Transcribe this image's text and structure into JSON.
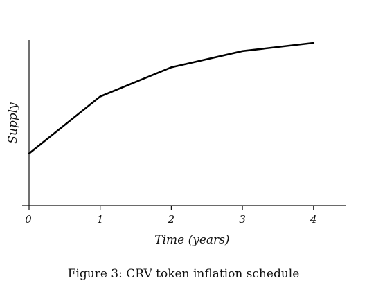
{
  "caption": "Figure 3: CRV token inflation schedule",
  "chart_data": {
    "type": "line",
    "title": "",
    "xlabel": "Time (years)",
    "ylabel": "Supply",
    "xticks": [
      "0",
      "1",
      "2",
      "3",
      "4"
    ],
    "xlim": [
      0,
      4.45
    ],
    "ylim": [
      0,
      1.0
    ],
    "grid": false,
    "legend": "none",
    "series": [
      {
        "x": [
          0,
          1,
          2,
          3,
          4
        ],
        "y": [
          0.32,
          0.67,
          0.85,
          0.95,
          1.0
        ],
        "color": "#000000"
      }
    ]
  }
}
